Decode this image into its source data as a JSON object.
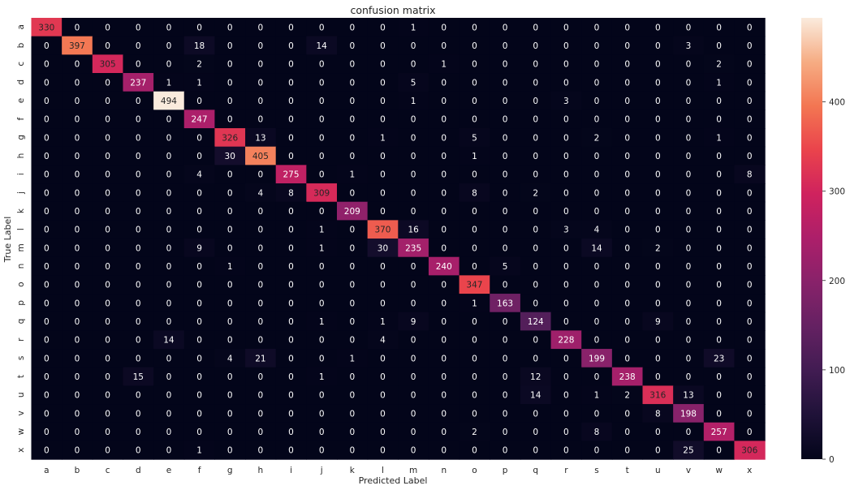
{
  "chart_data": {
    "type": "heatmap",
    "title": "confusion matrix",
    "xlabel": "Predicted Label",
    "ylabel": "True Label",
    "labels": [
      "a",
      "b",
      "c",
      "d",
      "e",
      "f",
      "g",
      "h",
      "i",
      "j",
      "k",
      "l",
      "m",
      "n",
      "o",
      "p",
      "q",
      "r",
      "s",
      "t",
      "u",
      "v",
      "w",
      "x"
    ],
    "matrix": [
      [
        330,
        0,
        0,
        0,
        0,
        0,
        0,
        0,
        0,
        0,
        0,
        0,
        1,
        0,
        0,
        0,
        0,
        0,
        0,
        0,
        0,
        0,
        0,
        0
      ],
      [
        0,
        397,
        0,
        0,
        0,
        18,
        0,
        0,
        0,
        14,
        0,
        0,
        0,
        0,
        0,
        0,
        0,
        0,
        0,
        0,
        0,
        3,
        0,
        0
      ],
      [
        0,
        0,
        305,
        0,
        0,
        2,
        0,
        0,
        0,
        0,
        0,
        0,
        0,
        1,
        0,
        0,
        0,
        0,
        0,
        0,
        0,
        0,
        2,
        0
      ],
      [
        0,
        0,
        0,
        237,
        1,
        1,
        0,
        0,
        0,
        0,
        0,
        0,
        5,
        0,
        0,
        0,
        0,
        0,
        0,
        0,
        0,
        0,
        1,
        0
      ],
      [
        0,
        0,
        0,
        0,
        494,
        0,
        0,
        0,
        0,
        0,
        0,
        0,
        1,
        0,
        0,
        0,
        0,
        3,
        0,
        0,
        0,
        0,
        0,
        0
      ],
      [
        0,
        0,
        0,
        0,
        0,
        247,
        0,
        0,
        0,
        0,
        0,
        0,
        0,
        0,
        0,
        0,
        0,
        0,
        0,
        0,
        0,
        0,
        0,
        0
      ],
      [
        0,
        0,
        0,
        0,
        0,
        0,
        326,
        13,
        0,
        0,
        0,
        1,
        0,
        0,
        5,
        0,
        0,
        0,
        2,
        0,
        0,
        0,
        1,
        0
      ],
      [
        0,
        0,
        0,
        0,
        0,
        0,
        30,
        405,
        0,
        0,
        0,
        0,
        0,
        0,
        1,
        0,
        0,
        0,
        0,
        0,
        0,
        0,
        0,
        0
      ],
      [
        0,
        0,
        0,
        0,
        0,
        4,
        0,
        0,
        275,
        0,
        1,
        0,
        0,
        0,
        0,
        0,
        0,
        0,
        0,
        0,
        0,
        0,
        0,
        8
      ],
      [
        0,
        0,
        0,
        0,
        0,
        0,
        0,
        4,
        8,
        309,
        0,
        0,
        0,
        0,
        8,
        0,
        2,
        0,
        0,
        0,
        0,
        0,
        0,
        0
      ],
      [
        0,
        0,
        0,
        0,
        0,
        0,
        0,
        0,
        0,
        0,
        209,
        0,
        0,
        0,
        0,
        0,
        0,
        0,
        0,
        0,
        0,
        0,
        0,
        0
      ],
      [
        0,
        0,
        0,
        0,
        0,
        0,
        0,
        0,
        0,
        1,
        0,
        370,
        16,
        0,
        0,
        0,
        0,
        3,
        4,
        0,
        0,
        0,
        0,
        0
      ],
      [
        0,
        0,
        0,
        0,
        0,
        9,
        0,
        0,
        0,
        1,
        0,
        30,
        235,
        0,
        0,
        0,
        0,
        0,
        14,
        0,
        2,
        0,
        0,
        0
      ],
      [
        0,
        0,
        0,
        0,
        0,
        0,
        1,
        0,
        0,
        0,
        0,
        0,
        0,
        240,
        0,
        5,
        0,
        0,
        0,
        0,
        0,
        0,
        0,
        0
      ],
      [
        0,
        0,
        0,
        0,
        0,
        0,
        0,
        0,
        0,
        0,
        0,
        0,
        0,
        0,
        347,
        0,
        0,
        0,
        0,
        0,
        0,
        0,
        0,
        0
      ],
      [
        0,
        0,
        0,
        0,
        0,
        0,
        0,
        0,
        0,
        0,
        0,
        0,
        0,
        0,
        1,
        163,
        0,
        0,
        0,
        0,
        0,
        0,
        0,
        0
      ],
      [
        0,
        0,
        0,
        0,
        0,
        0,
        0,
        0,
        0,
        1,
        0,
        1,
        9,
        0,
        0,
        0,
        124,
        0,
        0,
        0,
        9,
        0,
        0,
        0
      ],
      [
        0,
        0,
        0,
        0,
        14,
        0,
        0,
        0,
        0,
        0,
        0,
        4,
        0,
        0,
        0,
        0,
        0,
        228,
        0,
        0,
        0,
        0,
        0,
        0
      ],
      [
        0,
        0,
        0,
        0,
        0,
        0,
        4,
        21,
        0,
        0,
        1,
        0,
        0,
        0,
        0,
        0,
        0,
        0,
        199,
        0,
        0,
        0,
        23,
        0
      ],
      [
        0,
        0,
        0,
        15,
        0,
        0,
        0,
        0,
        0,
        1,
        0,
        0,
        0,
        0,
        0,
        0,
        12,
        0,
        0,
        238,
        0,
        0,
        0,
        0
      ],
      [
        0,
        0,
        0,
        0,
        0,
        0,
        0,
        0,
        0,
        0,
        0,
        0,
        0,
        0,
        0,
        0,
        14,
        0,
        1,
        2,
        316,
        13,
        0,
        0
      ],
      [
        0,
        0,
        0,
        0,
        0,
        0,
        0,
        0,
        0,
        0,
        0,
        0,
        0,
        0,
        0,
        0,
        0,
        0,
        0,
        0,
        8,
        198,
        0,
        0
      ],
      [
        0,
        0,
        0,
        0,
        0,
        0,
        0,
        0,
        0,
        0,
        0,
        0,
        0,
        0,
        2,
        0,
        0,
        0,
        8,
        0,
        0,
        0,
        257,
        0
      ],
      [
        0,
        0,
        0,
        0,
        0,
        1,
        0,
        0,
        0,
        0,
        0,
        0,
        0,
        0,
        0,
        0,
        0,
        0,
        0,
        0,
        0,
        25,
        0,
        306
      ]
    ],
    "colorbar": {
      "min": 0,
      "max": 494,
      "ticks": [
        0,
        100,
        200,
        300,
        400
      ],
      "colormap": "rocket"
    },
    "grid": false
  }
}
